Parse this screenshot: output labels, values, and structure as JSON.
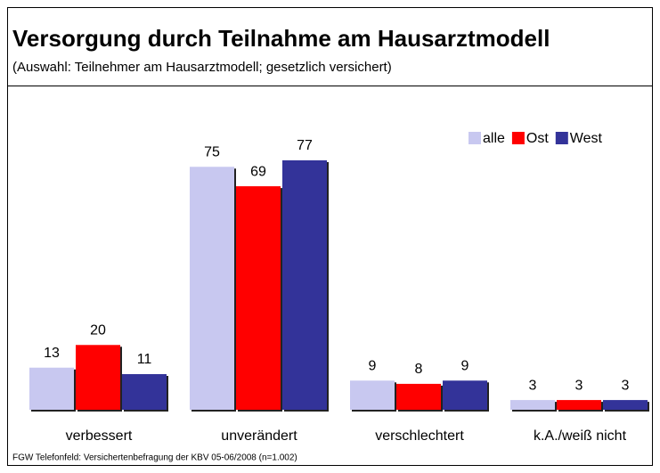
{
  "chart_data": {
    "type": "bar",
    "title": "Versorgung durch Teilnahme am Hausarztmodell",
    "subtitle": "(Auswahl: Teilnehmer am Hausarztmodell; gesetzlich versichert)",
    "source": "FGW Telefonfeld: Versichertenbefragung der KBV 05-06/2008 (n=1.002)",
    "categories": [
      "verbessert",
      "unverändert",
      "verschlechtert",
      "k.A./weiß nicht"
    ],
    "series": [
      {
        "name": "alle",
        "color": "#c8c8f0",
        "values": [
          13,
          75,
          9,
          3
        ]
      },
      {
        "name": "Ost",
        "color": "#ff0000",
        "values": [
          20,
          69,
          8,
          3
        ]
      },
      {
        "name": "West",
        "color": "#333399",
        "values": [
          11,
          77,
          9,
          3
        ]
      }
    ],
    "legend": "top-right"
  }
}
